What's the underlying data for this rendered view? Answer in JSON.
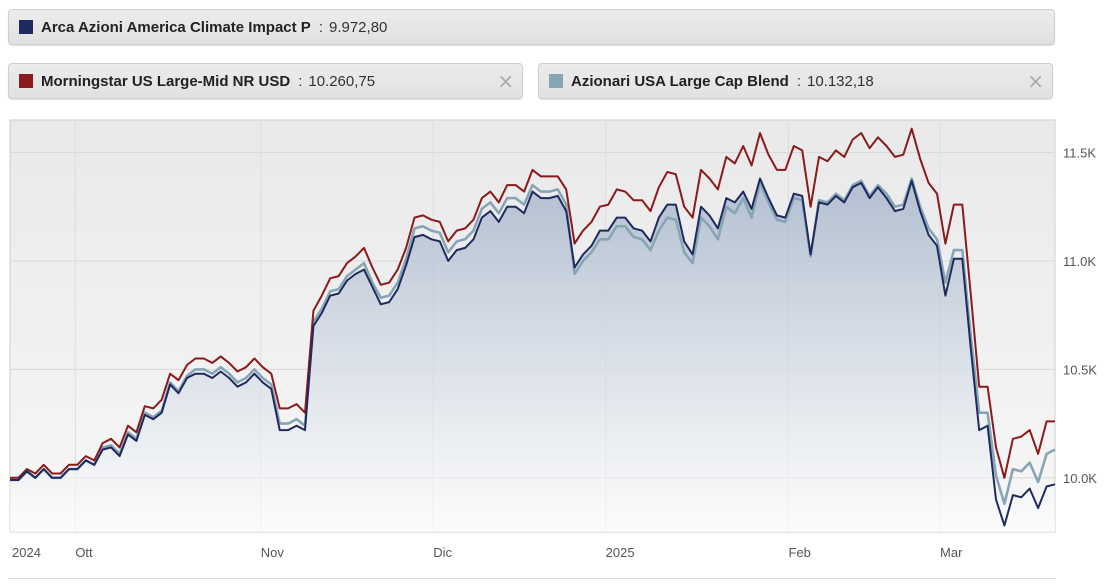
{
  "legend": [
    {
      "name": "Arca Azioni America Climate Impact P",
      "value": "9.972,80",
      "color": "#1f2a5e",
      "closable": false
    },
    {
      "name": "Morningstar US Large-Mid NR USD",
      "value": "10.260,75",
      "color": "#8b1a1a",
      "closable": true,
      "close_icon": "×"
    },
    {
      "name": "Azionari USA Large Cap Blend",
      "value": "10.132,18",
      "color": "#86a6b6",
      "closable": true,
      "close_icon": "×"
    }
  ],
  "chart_data": {
    "type": "line",
    "x_ticks": [
      "2024",
      "Ott",
      "Nov",
      "Dic",
      "2025",
      "Feb",
      "Mar"
    ],
    "y_ticks": [
      "11.5K",
      "11.0K",
      "10.5K",
      "10.0K"
    ],
    "y_tick_values": [
      11500,
      11000,
      10500,
      10000
    ],
    "ylim": [
      9750,
      11650
    ],
    "grid": true,
    "series": [
      {
        "name": "Arca Azioni America Climate Impact P",
        "color": "#1f2a5e",
        "fill": true,
        "values": [
          9990,
          9990,
          10030,
          10000,
          10040,
          10000,
          10000,
          10040,
          10040,
          10080,
          10060,
          10130,
          10140,
          10100,
          10200,
          10170,
          10290,
          10270,
          10300,
          10430,
          10390,
          10460,
          10480,
          10480,
          10460,
          10490,
          10460,
          10420,
          10440,
          10480,
          10440,
          10410,
          10220,
          10220,
          10240,
          10220,
          10700,
          10760,
          10840,
          10850,
          10910,
          10940,
          10960,
          10880,
          10800,
          10810,
          10870,
          10980,
          11110,
          11120,
          11100,
          11090,
          11000,
          11050,
          11060,
          11100,
          11200,
          11230,
          11180,
          11250,
          11250,
          11220,
          11320,
          11290,
          11290,
          11300,
          11230,
          10970,
          11030,
          11070,
          11140,
          11140,
          11200,
          11200,
          11150,
          11140,
          11090,
          11200,
          11260,
          11260,
          11090,
          11030,
          11250,
          11210,
          11150,
          11290,
          11270,
          11320,
          11240,
          11380,
          11290,
          11210,
          11200,
          11310,
          11300,
          11030,
          11270,
          11260,
          11300,
          11270,
          11340,
          11360,
          11290,
          11340,
          11290,
          11230,
          11240,
          11370,
          11230,
          11120,
          11070,
          10840,
          11010,
          11010,
          10600,
          10220,
          10240,
          9900,
          9780,
          9920,
          9910,
          9950,
          9860,
          9960,
          9970
        ],
        "last": "9.972,80"
      },
      {
        "name": "Morningstar US Large-Mid NR USD",
        "color": "#8b1a1a",
        "fill": false,
        "values": [
          10000,
          10000,
          10040,
          10020,
          10060,
          10020,
          10020,
          10060,
          10060,
          10100,
          10080,
          10160,
          10180,
          10140,
          10240,
          10210,
          10330,
          10320,
          10360,
          10480,
          10450,
          10520,
          10550,
          10550,
          10530,
          10560,
          10530,
          10490,
          10510,
          10550,
          10510,
          10480,
          10320,
          10320,
          10340,
          10300,
          10770,
          10840,
          10920,
          10930,
          10990,
          11020,
          11060,
          10970,
          10890,
          10900,
          10960,
          11060,
          11200,
          11210,
          11190,
          11180,
          11090,
          11140,
          11150,
          11190,
          11290,
          11320,
          11270,
          11350,
          11350,
          11320,
          11420,
          11390,
          11390,
          11390,
          11330,
          11080,
          11140,
          11180,
          11250,
          11260,
          11330,
          11320,
          11280,
          11280,
          11230,
          11340,
          11410,
          11400,
          11250,
          11200,
          11420,
          11380,
          11330,
          11480,
          11450,
          11530,
          11440,
          11590,
          11490,
          11420,
          11420,
          11530,
          11510,
          11250,
          11480,
          11460,
          11510,
          11480,
          11560,
          11590,
          11520,
          11570,
          11530,
          11480,
          11490,
          11610,
          11470,
          11360,
          11310,
          11080,
          11260,
          11260,
          10850,
          10420,
          10420,
          10140,
          10000,
          10180,
          10190,
          10220,
          10110,
          10260,
          10260
        ],
        "last": "10.260,75"
      },
      {
        "name": "Azionari USA Large Cap Blend",
        "color": "#86a6b6",
        "fill": false,
        "values": [
          9990,
          9990,
          10030,
          10000,
          10040,
          10000,
          10000,
          10040,
          10040,
          10080,
          10060,
          10140,
          10150,
          10110,
          10210,
          10180,
          10300,
          10280,
          10310,
          10440,
          10400,
          10470,
          10500,
          10500,
          10480,
          10510,
          10480,
          10440,
          10460,
          10500,
          10460,
          10430,
          10250,
          10250,
          10270,
          10240,
          10720,
          10780,
          10860,
          10870,
          10930,
          10960,
          10990,
          10900,
          10830,
          10840,
          10900,
          11010,
          11150,
          11160,
          11140,
          11130,
          11040,
          11090,
          11100,
          11140,
          11240,
          11270,
          11220,
          11290,
          11290,
          11260,
          11350,
          11320,
          11320,
          11330,
          11260,
          10940,
          11000,
          11040,
          11100,
          11100,
          11160,
          11160,
          11110,
          11100,
          11050,
          11140,
          11200,
          11190,
          11040,
          10990,
          11200,
          11160,
          11100,
          11250,
          11220,
          11290,
          11200,
          11360,
          11270,
          11190,
          11180,
          11290,
          11280,
          11020,
          11280,
          11270,
          11310,
          11280,
          11350,
          11370,
          11300,
          11350,
          11310,
          11250,
          11260,
          11380,
          11250,
          11150,
          11100,
          10900,
          11050,
          11050,
          10660,
          10300,
          10300,
          10010,
          9880,
          10040,
          10030,
          10070,
          9980,
          10110,
          10130
        ],
        "last": "10.132,18"
      }
    ]
  }
}
